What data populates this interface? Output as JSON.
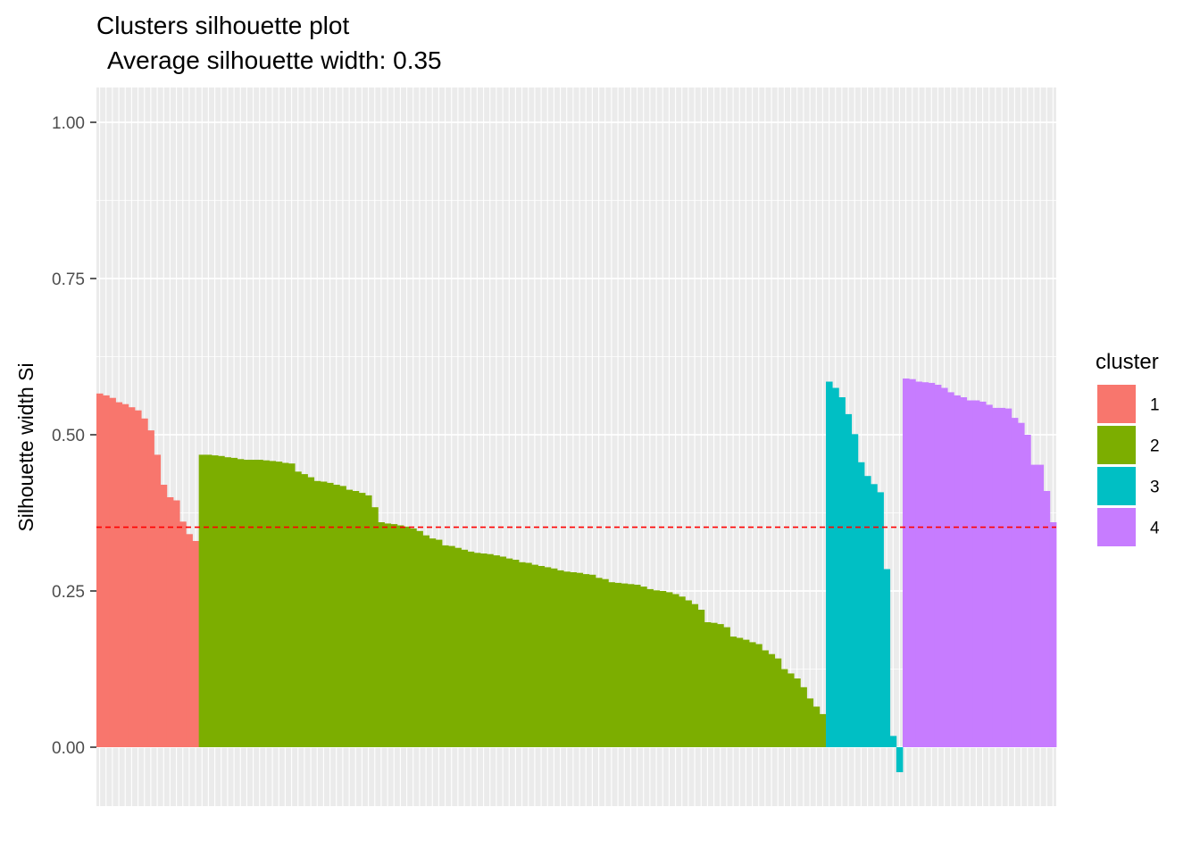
{
  "chart_data": {
    "type": "bar",
    "title": "Clusters silhouette plot",
    "subtitle": "Average silhouette width: 0.35",
    "xlabel": "",
    "ylabel": "Silhouette width Si",
    "ylim": [
      -0.1,
      1.05
    ],
    "yticks": [
      "0.00",
      "0.25",
      "0.50",
      "0.75",
      "1.00"
    ],
    "grid": true,
    "average_line": 0.352,
    "average_line_color": "#ff0000",
    "legend": {
      "title": "cluster",
      "position": "right",
      "entries": [
        {
          "label": "1",
          "color": "#f8766d"
        },
        {
          "label": "2",
          "color": "#7cae00"
        },
        {
          "label": "3",
          "color": "#00bfc4"
        },
        {
          "label": "4",
          "color": "#c77cff"
        }
      ]
    },
    "series": [
      {
        "cluster": "1",
        "color": "#f8766d",
        "values": [
          0.566,
          0.563,
          0.559,
          0.552,
          0.549,
          0.544,
          0.539,
          0.526,
          0.507,
          0.468,
          0.42,
          0.4,
          0.395,
          0.361,
          0.341,
          0.33
        ]
      },
      {
        "cluster": "2",
        "color": "#7cae00",
        "values": [
          0.468,
          0.468,
          0.467,
          0.466,
          0.464,
          0.463,
          0.461,
          0.46,
          0.46,
          0.46,
          0.459,
          0.458,
          0.457,
          0.455,
          0.454,
          0.441,
          0.437,
          0.432,
          0.426,
          0.425,
          0.423,
          0.42,
          0.418,
          0.412,
          0.41,
          0.407,
          0.403,
          0.384,
          0.36,
          0.358,
          0.357,
          0.355,
          0.353,
          0.35,
          0.346,
          0.339,
          0.334,
          0.332,
          0.323,
          0.322,
          0.319,
          0.316,
          0.313,
          0.311,
          0.31,
          0.309,
          0.307,
          0.305,
          0.302,
          0.3,
          0.296,
          0.295,
          0.292,
          0.29,
          0.288,
          0.286,
          0.283,
          0.281,
          0.28,
          0.279,
          0.277,
          0.276,
          0.271,
          0.269,
          0.264,
          0.263,
          0.262,
          0.261,
          0.26,
          0.257,
          0.253,
          0.251,
          0.25,
          0.248,
          0.245,
          0.241,
          0.235,
          0.229,
          0.22,
          0.2,
          0.199,
          0.197,
          0.192,
          0.177,
          0.175,
          0.172,
          0.168,
          0.165,
          0.155,
          0.149,
          0.142,
          0.125,
          0.118,
          0.11,
          0.096,
          0.078,
          0.065,
          0.053
        ]
      },
      {
        "cluster": "3",
        "color": "#00bfc4",
        "values": [
          0.585,
          0.575,
          0.56,
          0.533,
          0.501,
          0.456,
          0.434,
          0.421,
          0.408,
          0.285,
          0.018,
          -0.04
        ]
      },
      {
        "cluster": "4",
        "color": "#c77cff",
        "values": [
          0.59,
          0.589,
          0.585,
          0.584,
          0.583,
          0.58,
          0.575,
          0.568,
          0.563,
          0.56,
          0.555,
          0.555,
          0.553,
          0.548,
          0.543,
          0.543,
          0.542,
          0.527,
          0.519,
          0.5,
          0.452,
          0.452,
          0.41,
          0.36
        ]
      }
    ]
  }
}
